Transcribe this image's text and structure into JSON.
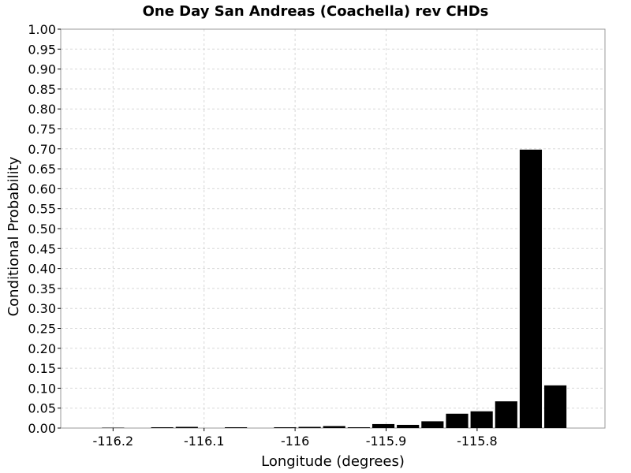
{
  "chart_data": {
    "type": "bar",
    "title": "One Day San Andreas (Coachella) rev CHDs",
    "xlabel": "Longitude (degrees)",
    "ylabel": "Conditional Probability",
    "xlim": [
      -116.2575,
      -115.6595
    ],
    "ylim": [
      0,
      1.0
    ],
    "bar_width": 0.027,
    "x_ticks": [
      -116.2,
      -116.1,
      -116.0,
      -115.9,
      -115.8
    ],
    "x_tick_labels": [
      "-116.2",
      "-116.1",
      "-116",
      "-115.9",
      "-115.8"
    ],
    "y_ticks": [
      0.0,
      0.05,
      0.1,
      0.15,
      0.2,
      0.25,
      0.3,
      0.35,
      0.4,
      0.45,
      0.5,
      0.55,
      0.6,
      0.65,
      0.7,
      0.75,
      0.8,
      0.85,
      0.9,
      0.95,
      1.0
    ],
    "y_tick_labels": [
      "0.00",
      "0.05",
      "0.10",
      "0.15",
      "0.20",
      "0.25",
      "0.30",
      "0.35",
      "0.40",
      "0.45",
      "0.50",
      "0.55",
      "0.60",
      "0.65",
      "0.70",
      "0.75",
      "0.80",
      "0.85",
      "0.90",
      "0.95",
      "1.00"
    ],
    "x": [
      -116.2,
      -116.173,
      -116.146,
      -116.119,
      -116.092,
      -116.065,
      -116.038,
      -116.011,
      -115.984,
      -115.957,
      -115.93,
      -115.903,
      -115.876,
      -115.849,
      -115.822,
      -115.795,
      -115.768,
      -115.741,
      -115.714,
      -115.687
    ],
    "values": [
      0.001,
      0.0,
      0.002,
      0.003,
      0.0,
      0.002,
      0.0,
      0.002,
      0.003,
      0.005,
      0.002,
      0.01,
      0.008,
      0.017,
      0.036,
      0.042,
      0.067,
      0.698,
      0.107,
      0.0
    ],
    "grid": true,
    "bar_color": "#000000",
    "grid_color": "#d8d8d8",
    "background": "#ffffff",
    "plot_border_color": "#999999"
  }
}
